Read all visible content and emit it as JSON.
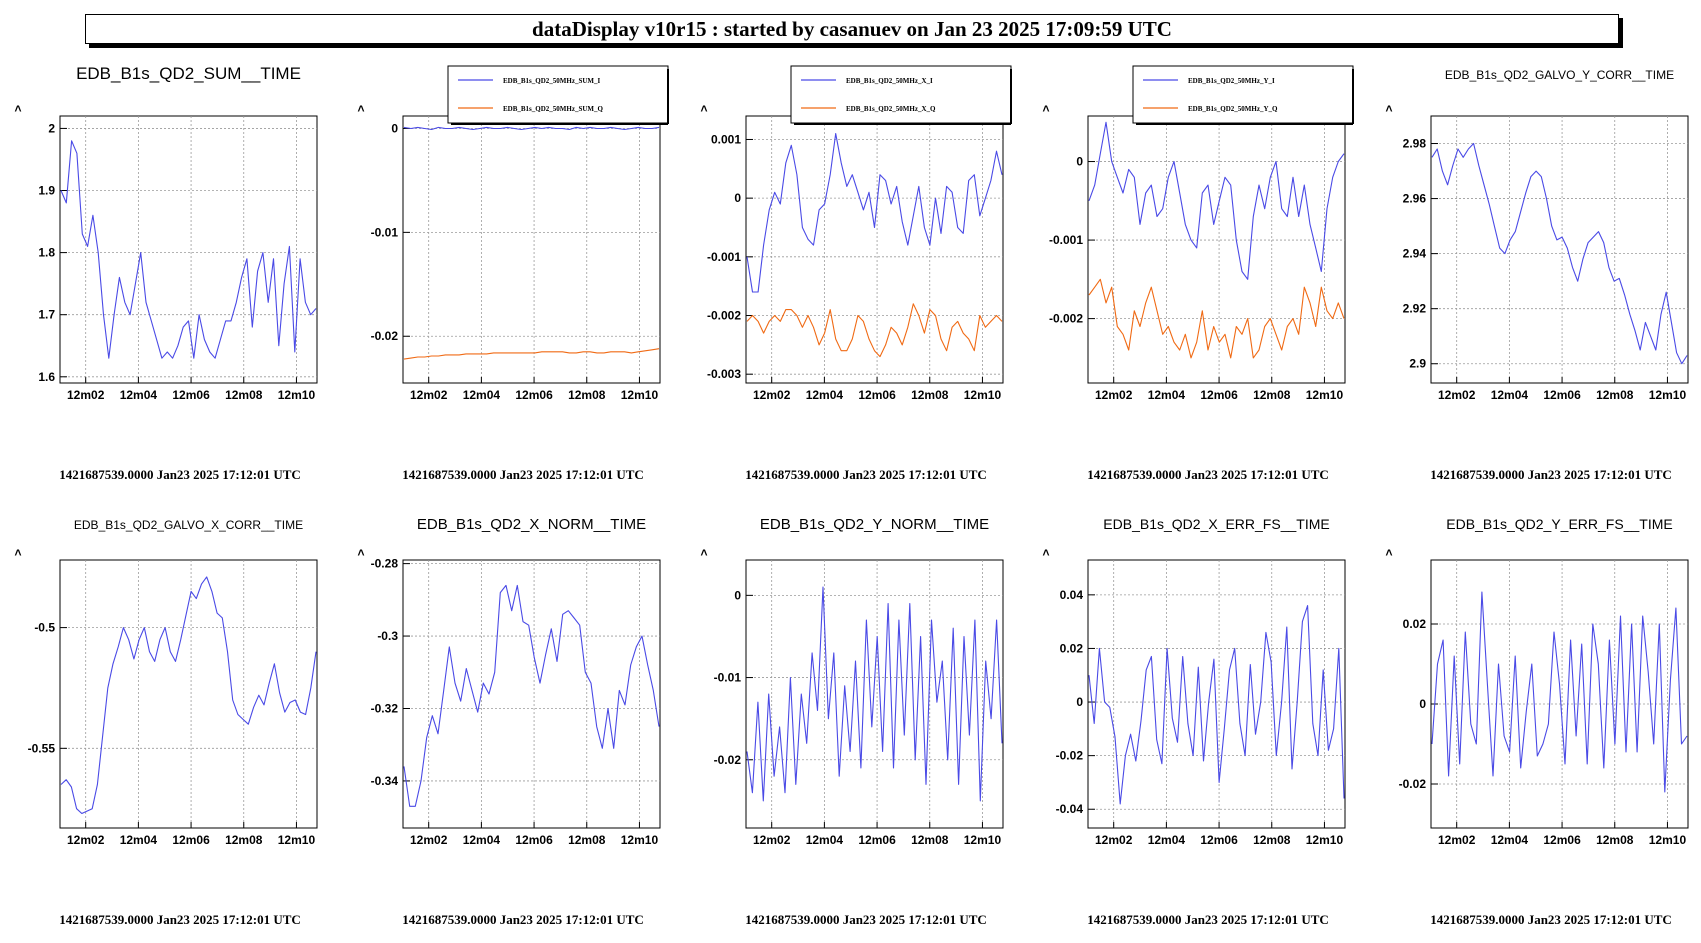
{
  "header": {
    "title": "dataDisplay v10r15 : started by casanuev on Jan 23 2025 17:09:59 UTC"
  },
  "colors": {
    "series1": "#4a4ae6",
    "series2": "#f06a14",
    "grid": "#9a9a9a"
  },
  "footer_text": "1421687539.0000 Jan23 2025 17:12:01 UTC",
  "ylabel": ">",
  "chart_data": [
    {
      "type": "line",
      "title": "EDB_B1s_QD2_SUM__TIME",
      "x_ticks": [
        "12m02",
        "12m04",
        "12m06",
        "12m08",
        "12m10"
      ],
      "y_ticks": [
        "2",
        "1.9",
        "1.8",
        "1.7",
        "1.6"
      ],
      "ylim": [
        1.59,
        2.02
      ],
      "series": [
        {
          "values": [
            1.9,
            1.88,
            1.98,
            1.96,
            1.83,
            1.81,
            1.86,
            1.8,
            1.7,
            1.63,
            1.7,
            1.76,
            1.72,
            1.7,
            1.75,
            1.8,
            1.72,
            1.69,
            1.66,
            1.63,
            1.64,
            1.63,
            1.65,
            1.68,
            1.69,
            1.63,
            1.7,
            1.66,
            1.64,
            1.63,
            1.66,
            1.69,
            1.69,
            1.72,
            1.76,
            1.79,
            1.68,
            1.77,
            1.8,
            1.72,
            1.79,
            1.65,
            1.75,
            1.81,
            1.64,
            1.79,
            1.72,
            1.7,
            1.71
          ]
        }
      ]
    },
    {
      "type": "line",
      "title": "",
      "legend": [
        "EDB_B1s_QD2_50MHz_SUM_I",
        "EDB_B1s_QD2_50MHz_SUM_Q"
      ],
      "x_ticks": [
        "12m02",
        "12m04",
        "12m06",
        "12m08",
        "12m10"
      ],
      "y_ticks": [
        "0",
        "-0.01",
        "-0.02"
      ],
      "ylim": [
        -0.0245,
        0.0012
      ],
      "series": [
        {
          "values": [
            0.0001,
            0.0,
            0.0001,
            0.0,
            -0.0001,
            0.0001,
            0.0,
            0.0,
            0.0001,
            0.0,
            -0.0001,
            0.0,
            0.0001,
            0.0,
            0.0,
            0.0001,
            0.0,
            -0.0001,
            0.0,
            0.0001,
            0.0,
            0.0001,
            0.0,
            0.0,
            -0.0001,
            0.0001,
            0.0,
            0.0001,
            0.0,
            0.0,
            0.0001,
            0.0,
            -0.0001,
            0.0,
            0.0001,
            0.0,
            0.0,
            0.0001
          ]
        },
        {
          "values": [
            -0.0222,
            -0.0221,
            -0.022,
            -0.022,
            -0.0219,
            -0.0219,
            -0.0218,
            -0.0218,
            -0.0218,
            -0.0217,
            -0.0217,
            -0.0217,
            -0.0217,
            -0.0216,
            -0.0216,
            -0.0216,
            -0.0216,
            -0.0216,
            -0.0216,
            -0.0216,
            -0.0215,
            -0.0215,
            -0.0215,
            -0.0215,
            -0.0216,
            -0.0216,
            -0.0215,
            -0.0215,
            -0.0216,
            -0.0216,
            -0.0215,
            -0.0215,
            -0.0215,
            -0.0216,
            -0.0215,
            -0.0214,
            -0.0213,
            -0.0212
          ]
        }
      ]
    },
    {
      "type": "line",
      "title": "",
      "legend": [
        "EDB_B1s_QD2_50MHz_X_I",
        "EDB_B1s_QD2_50MHz_X_Q"
      ],
      "x_ticks": [
        "12m02",
        "12m04",
        "12m06",
        "12m08",
        "12m10"
      ],
      "y_ticks": [
        "0.001",
        "0",
        "-0.001",
        "-0.002",
        "-0.003"
      ],
      "ylim": [
        -0.00315,
        0.0014
      ],
      "series": [
        {
          "values": [
            -0.001,
            -0.0016,
            -0.0016,
            -0.0008,
            -0.0002,
            0.0001,
            -0.0001,
            0.0006,
            0.0009,
            0.0004,
            -0.0005,
            -0.0007,
            -0.0008,
            -0.0002,
            -0.0001,
            0.0004,
            0.0011,
            0.0006,
            0.0002,
            0.0004,
            0.0001,
            -0.0002,
            0.0001,
            -0.0005,
            0.0004,
            0.0003,
            -0.0001,
            0.0002,
            -0.0004,
            -0.0008,
            -0.0003,
            0.0002,
            -0.0005,
            -0.0008,
            0.0,
            -0.0006,
            0.0002,
            0.0001,
            -0.0005,
            -0.0006,
            0.0003,
            0.0004,
            -0.0003,
            0.0,
            0.0003,
            0.0008,
            0.0004
          ]
        },
        {
          "values": [
            -0.0021,
            -0.002,
            -0.0021,
            -0.0023,
            -0.0021,
            -0.002,
            -0.0021,
            -0.0019,
            -0.0019,
            -0.002,
            -0.0022,
            -0.002,
            -0.0022,
            -0.0025,
            -0.0023,
            -0.0019,
            -0.0024,
            -0.0026,
            -0.0026,
            -0.0024,
            -0.002,
            -0.0021,
            -0.0024,
            -0.0026,
            -0.0027,
            -0.0025,
            -0.0022,
            -0.0023,
            -0.0025,
            -0.0022,
            -0.0018,
            -0.002,
            -0.0023,
            -0.0019,
            -0.002,
            -0.0024,
            -0.0026,
            -0.0022,
            -0.0021,
            -0.0023,
            -0.0024,
            -0.0026,
            -0.002,
            -0.0022,
            -0.0021,
            -0.002,
            -0.0021
          ]
        }
      ]
    },
    {
      "type": "line",
      "title": "",
      "legend": [
        "EDB_B1s_QD2_50MHz_Y_I",
        "EDB_B1s_QD2_50MHz_Y_Q"
      ],
      "x_ticks": [
        "12m02",
        "12m04",
        "12m06",
        "12m08",
        "12m10"
      ],
      "y_ticks": [
        "0",
        "-0.001",
        "-0.002"
      ],
      "ylim": [
        -0.00282,
        0.00058
      ],
      "series": [
        {
          "values": [
            -0.0005,
            -0.0003,
            0.0001,
            0.0005,
            0.0,
            -0.0002,
            -0.0004,
            -0.0001,
            -0.0002,
            -0.0008,
            -0.0004,
            -0.0003,
            -0.0007,
            -0.0006,
            -0.0002,
            0.0,
            -0.0004,
            -0.0008,
            -0.001,
            -0.0011,
            -0.0004,
            -0.0003,
            -0.0008,
            -0.0005,
            -0.0002,
            -0.0003,
            -0.001,
            -0.0014,
            -0.0015,
            -0.0007,
            -0.0003,
            -0.0006,
            -0.0002,
            0.0,
            -0.0006,
            -0.0007,
            -0.0002,
            -0.0007,
            -0.0003,
            -0.0008,
            -0.0011,
            -0.0014,
            -0.0006,
            -0.0002,
            0.0,
            0.0001
          ]
        },
        {
          "values": [
            -0.0017,
            -0.0016,
            -0.0015,
            -0.0018,
            -0.0016,
            -0.0021,
            -0.0022,
            -0.0024,
            -0.0019,
            -0.0021,
            -0.0018,
            -0.0016,
            -0.0019,
            -0.0022,
            -0.0021,
            -0.0023,
            -0.0024,
            -0.0022,
            -0.0025,
            -0.0023,
            -0.0019,
            -0.0024,
            -0.0021,
            -0.0023,
            -0.0022,
            -0.0025,
            -0.0021,
            -0.0022,
            -0.002,
            -0.0025,
            -0.0024,
            -0.0021,
            -0.002,
            -0.0022,
            -0.0024,
            -0.0021,
            -0.002,
            -0.0022,
            -0.0016,
            -0.0018,
            -0.0021,
            -0.0016,
            -0.0019,
            -0.002,
            -0.0018,
            -0.002
          ]
        }
      ]
    },
    {
      "type": "line",
      "title": "EDB_B1s_QD2_GALVO_Y_CORR__TIME",
      "x_ticks": [
        "12m02",
        "12m04",
        "12m06",
        "12m08",
        "12m10"
      ],
      "y_ticks": [
        "2.98",
        "2.96",
        "2.94",
        "2.92",
        "2.9"
      ],
      "ylim": [
        2.893,
        2.99
      ],
      "series": [
        {
          "values": [
            2.975,
            2.978,
            2.97,
            2.965,
            2.972,
            2.978,
            2.975,
            2.978,
            2.98,
            2.972,
            2.965,
            2.958,
            2.95,
            2.942,
            2.94,
            2.945,
            2.948,
            2.955,
            2.962,
            2.968,
            2.97,
            2.968,
            2.96,
            2.95,
            2.945,
            2.946,
            2.942,
            2.935,
            2.93,
            2.938,
            2.944,
            2.946,
            2.948,
            2.944,
            2.935,
            2.93,
            2.931,
            2.925,
            2.918,
            2.912,
            2.905,
            2.915,
            2.91,
            2.905,
            2.918,
            2.926,
            2.915,
            2.904,
            2.9,
            2.903
          ]
        }
      ]
    },
    {
      "type": "line",
      "title": "EDB_B1s_QD2_GALVO_X_CORR__TIME",
      "x_ticks": [
        "12m02",
        "12m04",
        "12m06",
        "12m08",
        "12m10"
      ],
      "y_ticks": [
        "-0.5",
        "-0.55"
      ],
      "ylim": [
        -0.583,
        -0.472
      ],
      "series": [
        {
          "values": [
            -0.565,
            -0.563,
            -0.566,
            -0.575,
            -0.577,
            -0.576,
            -0.575,
            -0.565,
            -0.545,
            -0.525,
            -0.515,
            -0.508,
            -0.5,
            -0.505,
            -0.513,
            -0.505,
            -0.5,
            -0.51,
            -0.514,
            -0.505,
            -0.5,
            -0.51,
            -0.514,
            -0.505,
            -0.495,
            -0.485,
            -0.488,
            -0.482,
            -0.479,
            -0.485,
            -0.494,
            -0.496,
            -0.51,
            -0.53,
            -0.536,
            -0.538,
            -0.54,
            -0.533,
            -0.528,
            -0.532,
            -0.523,
            -0.515,
            -0.527,
            -0.535,
            -0.531,
            -0.53,
            -0.535,
            -0.536,
            -0.525,
            -0.51
          ]
        }
      ]
    },
    {
      "type": "line",
      "title": "EDB_B1s_QD2_X_NORM__TIME",
      "x_ticks": [
        "12m02",
        "12m04",
        "12m06",
        "12m08",
        "12m10"
      ],
      "y_ticks": [
        "-0.28",
        "-0.3",
        "-0.32",
        "-0.34"
      ],
      "ylim": [
        -0.353,
        -0.279
      ],
      "series": [
        {
          "values": [
            -0.336,
            -0.347,
            -0.347,
            -0.34,
            -0.328,
            -0.322,
            -0.327,
            -0.315,
            -0.303,
            -0.313,
            -0.318,
            -0.309,
            -0.315,
            -0.321,
            -0.313,
            -0.316,
            -0.31,
            -0.288,
            -0.286,
            -0.293,
            -0.286,
            -0.296,
            -0.297,
            -0.306,
            -0.313,
            -0.305,
            -0.298,
            -0.307,
            -0.294,
            -0.293,
            -0.295,
            -0.297,
            -0.31,
            -0.313,
            -0.325,
            -0.331,
            -0.32,
            -0.331,
            -0.315,
            -0.319,
            -0.308,
            -0.303,
            -0.3,
            -0.308,
            -0.315,
            -0.325
          ]
        }
      ]
    },
    {
      "type": "line",
      "title": "EDB_B1s_QD2_Y_NORM__TIME",
      "x_ticks": [
        "12m02",
        "12m04",
        "12m06",
        "12m08",
        "12m10"
      ],
      "y_ticks": [
        "0",
        "-0.01",
        "-0.02"
      ],
      "ylim": [
        -0.0283,
        0.0043
      ],
      "series": [
        {
          "values": [
            -0.019,
            -0.024,
            -0.013,
            -0.025,
            -0.012,
            -0.022,
            -0.016,
            -0.024,
            -0.01,
            -0.023,
            -0.012,
            -0.018,
            -0.007,
            -0.014,
            0.001,
            -0.015,
            -0.007,
            -0.022,
            -0.011,
            -0.019,
            -0.008,
            -0.021,
            -0.003,
            -0.016,
            -0.005,
            -0.019,
            -0.001,
            -0.021,
            -0.003,
            -0.017,
            -0.001,
            -0.02,
            -0.005,
            -0.023,
            -0.003,
            -0.013,
            -0.008,
            -0.02,
            -0.004,
            -0.023,
            -0.005,
            -0.017,
            -0.003,
            -0.025,
            -0.008,
            -0.015,
            -0.003,
            -0.018
          ]
        }
      ]
    },
    {
      "type": "line",
      "title": "EDB_B1s_QD2_X_ERR_FS__TIME",
      "x_ticks": [
        "12m02",
        "12m04",
        "12m06",
        "12m08",
        "12m10"
      ],
      "y_ticks": [
        "0.04",
        "0.02",
        "0",
        "-0.02",
        "-0.04"
      ],
      "ylim": [
        -0.047,
        0.053
      ],
      "series": [
        {
          "values": [
            0.01,
            -0.008,
            0.02,
            0.0,
            -0.002,
            -0.013,
            -0.038,
            -0.02,
            -0.012,
            -0.022,
            -0.007,
            0.012,
            0.017,
            -0.014,
            -0.023,
            0.02,
            -0.006,
            -0.015,
            0.017,
            -0.008,
            -0.02,
            0.013,
            -0.022,
            0.0,
            0.016,
            -0.03,
            -0.01,
            0.012,
            0.02,
            -0.008,
            -0.02,
            0.014,
            -0.012,
            0.0,
            0.026,
            0.015,
            -0.02,
            0.0,
            0.028,
            -0.025,
            0.0,
            0.03,
            0.036,
            -0.008,
            -0.02,
            0.012,
            -0.018,
            -0.01,
            0.02,
            -0.036
          ]
        }
      ]
    },
    {
      "type": "line",
      "title": "EDB_B1s_QD2_Y_ERR_FS__TIME",
      "x_ticks": [
        "12m02",
        "12m04",
        "12m06",
        "12m08",
        "12m10"
      ],
      "y_ticks": [
        "0.02",
        "0",
        "-0.02"
      ],
      "ylim": [
        -0.031,
        0.036
      ],
      "series": [
        {
          "values": [
            -0.01,
            0.01,
            0.016,
            -0.018,
            0.012,
            -0.015,
            0.018,
            -0.005,
            -0.01,
            0.028,
            0.005,
            -0.018,
            0.01,
            -0.008,
            -0.012,
            0.012,
            -0.016,
            -0.002,
            0.01,
            -0.013,
            -0.01,
            -0.005,
            0.018,
            0.005,
            -0.015,
            0.016,
            -0.008,
            0.015,
            -0.015,
            0.02,
            0.01,
            -0.016,
            0.016,
            -0.01,
            0.022,
            -0.012,
            0.02,
            -0.012,
            0.022,
            0.008,
            -0.01,
            0.02,
            -0.022,
            0.006,
            0.024,
            -0.01,
            -0.008
          ]
        }
      ]
    }
  ]
}
